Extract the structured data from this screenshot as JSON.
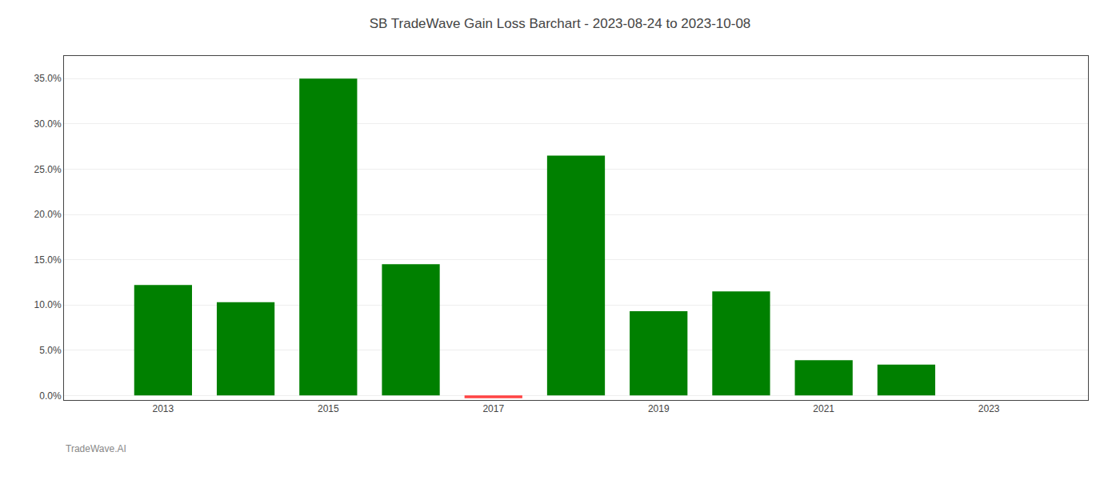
{
  "chart_data": {
    "type": "bar",
    "title": "SB TradeWave Gain Loss Barchart - 2023-08-24 to 2023-10-08",
    "annotations": [
      "TradeWave.AI"
    ],
    "x": [
      2013,
      2014,
      2015,
      2016,
      2017,
      2018,
      2019,
      2020,
      2021,
      2022
    ],
    "values": [
      0.122,
      0.103,
      0.35,
      0.145,
      -0.003,
      0.265,
      0.093,
      0.115,
      0.039,
      0.034
    ],
    "colors": [
      "#008000",
      "#008000",
      "#008000",
      "#008000",
      "#ff4444",
      "#008000",
      "#008000",
      "#008000",
      "#008000",
      "#008000"
    ],
    "xlim": [
      2011.8,
      2024.2
    ],
    "xticks": [
      2013,
      2015,
      2017,
      2019,
      2021,
      2023
    ],
    "ylim": [
      -0.005,
      0.375
    ],
    "yticks": [
      {
        "value": 0.0,
        "label": "0.0%"
      },
      {
        "value": 0.05,
        "label": "5.0%"
      },
      {
        "value": 0.1,
        "label": "10.0%"
      },
      {
        "value": 0.15,
        "label": "15.0%"
      },
      {
        "value": 0.2,
        "label": "20.0%"
      },
      {
        "value": 0.25,
        "label": "25.0%"
      },
      {
        "value": 0.3,
        "label": "30.0%"
      },
      {
        "value": 0.35,
        "label": "35.0%"
      }
    ],
    "grid": "y"
  }
}
